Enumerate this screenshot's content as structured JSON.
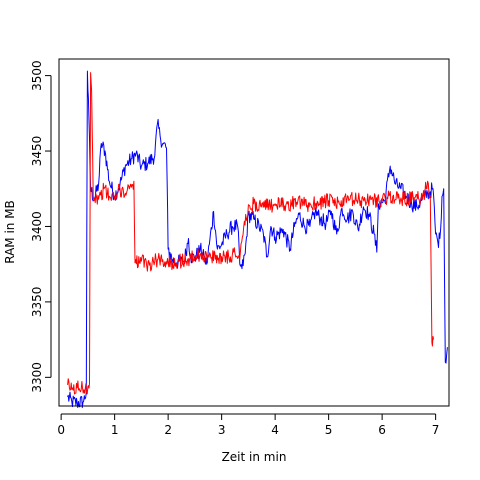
{
  "chart_data": {
    "type": "line",
    "title": "",
    "xlabel": "Zeit in min",
    "ylabel": "RAM in MB",
    "xlim": [
      -0.04,
      7.25
    ],
    "ylim": [
      3281,
      3511
    ],
    "x_ticks": [
      0,
      1,
      2,
      3,
      4,
      5,
      6,
      7
    ],
    "y_ticks": [
      3300,
      3350,
      3400,
      3450,
      3500
    ],
    "grid": false,
    "legend": "none",
    "noise_amplitude": 5,
    "series": [
      {
        "color": "#0000ff",
        "points": [
          [
            0.12,
            3287
          ],
          [
            0.2,
            3284
          ],
          [
            0.3,
            3283
          ],
          [
            0.42,
            3284
          ],
          [
            0.47,
            3290
          ],
          [
            0.49,
            3503
          ],
          [
            0.52,
            3470
          ],
          [
            0.55,
            3425
          ],
          [
            0.62,
            3418
          ],
          [
            0.7,
            3428
          ],
          [
            0.75,
            3455
          ],
          [
            0.82,
            3450
          ],
          [
            0.9,
            3430
          ],
          [
            1.0,
            3420
          ],
          [
            1.1,
            3428
          ],
          [
            1.2,
            3440
          ],
          [
            1.32,
            3445
          ],
          [
            1.4,
            3448
          ],
          [
            1.5,
            3440
          ],
          [
            1.62,
            3442
          ],
          [
            1.75,
            3447
          ],
          [
            1.8,
            3468
          ],
          [
            1.85,
            3460
          ],
          [
            1.9,
            3455
          ],
          [
            1.97,
            3452
          ],
          [
            2.0,
            3385
          ],
          [
            2.08,
            3378
          ],
          [
            2.15,
            3376
          ],
          [
            2.3,
            3377
          ],
          [
            2.38,
            3392
          ],
          [
            2.42,
            3380
          ],
          [
            2.5,
            3379
          ],
          [
            2.6,
            3385
          ],
          [
            2.72,
            3375
          ],
          [
            2.77,
            3388
          ],
          [
            2.85,
            3410
          ],
          [
            2.92,
            3385
          ],
          [
            3.0,
            3388
          ],
          [
            3.1,
            3395
          ],
          [
            3.2,
            3400
          ],
          [
            3.3,
            3400
          ],
          [
            3.34,
            3375
          ],
          [
            3.38,
            3372
          ],
          [
            3.44,
            3382
          ],
          [
            3.5,
            3408
          ],
          [
            3.6,
            3405
          ],
          [
            3.7,
            3400
          ],
          [
            3.78,
            3395
          ],
          [
            3.85,
            3380
          ],
          [
            3.92,
            3400
          ],
          [
            4.0,
            3393
          ],
          [
            4.15,
            3398
          ],
          [
            4.28,
            3385
          ],
          [
            4.36,
            3400
          ],
          [
            4.45,
            3408
          ],
          [
            4.55,
            3400
          ],
          [
            4.65,
            3400
          ],
          [
            4.75,
            3410
          ],
          [
            4.85,
            3405
          ],
          [
            4.95,
            3402
          ],
          [
            5.05,
            3410
          ],
          [
            5.15,
            3395
          ],
          [
            5.25,
            3412
          ],
          [
            5.35,
            3405
          ],
          [
            5.45,
            3410
          ],
          [
            5.55,
            3398
          ],
          [
            5.65,
            3413
          ],
          [
            5.75,
            3408
          ],
          [
            5.85,
            3395
          ],
          [
            5.9,
            3383
          ],
          [
            5.93,
            3415
          ],
          [
            6.05,
            3417
          ],
          [
            6.15,
            3440
          ],
          [
            6.25,
            3428
          ],
          [
            6.35,
            3425
          ],
          [
            6.45,
            3420
          ],
          [
            6.55,
            3415
          ],
          [
            6.65,
            3413
          ],
          [
            6.75,
            3418
          ],
          [
            6.85,
            3422
          ],
          [
            6.95,
            3425
          ],
          [
            7.0,
            3395
          ],
          [
            7.04,
            3390
          ],
          [
            7.08,
            3392
          ],
          [
            7.12,
            3420
          ],
          [
            7.15,
            3425
          ],
          [
            7.18,
            3310
          ],
          [
            7.22,
            3320
          ]
        ]
      },
      {
        "color": "#ff0000",
        "points": [
          [
            0.12,
            3295
          ],
          [
            0.2,
            3292
          ],
          [
            0.3,
            3293
          ],
          [
            0.4,
            3293
          ],
          [
            0.5,
            3294
          ],
          [
            0.53,
            3296
          ],
          [
            0.55,
            3502
          ],
          [
            0.57,
            3490
          ],
          [
            0.6,
            3420
          ],
          [
            0.7,
            3418
          ],
          [
            0.8,
            3425
          ],
          [
            0.9,
            3420
          ],
          [
            1.0,
            3418
          ],
          [
            1.1,
            3425
          ],
          [
            1.2,
            3422
          ],
          [
            1.3,
            3428
          ],
          [
            1.36,
            3430
          ],
          [
            1.38,
            3376
          ],
          [
            1.5,
            3377
          ],
          [
            1.6,
            3374
          ],
          [
            1.7,
            3376
          ],
          [
            1.8,
            3378
          ],
          [
            1.9,
            3378
          ],
          [
            2.0,
            3376
          ],
          [
            2.2,
            3377
          ],
          [
            2.4,
            3378
          ],
          [
            2.6,
            3382
          ],
          [
            2.8,
            3379
          ],
          [
            3.0,
            3380
          ],
          [
            3.2,
            3381
          ],
          [
            3.35,
            3383
          ],
          [
            3.45,
            3408
          ],
          [
            3.6,
            3415
          ],
          [
            3.8,
            3413
          ],
          [
            4.0,
            3415
          ],
          [
            4.2,
            3414
          ],
          [
            4.4,
            3416
          ],
          [
            4.6,
            3414
          ],
          [
            4.8,
            3416
          ],
          [
            5.0,
            3417
          ],
          [
            5.2,
            3415
          ],
          [
            5.4,
            3418
          ],
          [
            5.6,
            3417
          ],
          [
            5.8,
            3418
          ],
          [
            6.0,
            3417
          ],
          [
            6.2,
            3420
          ],
          [
            6.4,
            3418
          ],
          [
            6.6,
            3419
          ],
          [
            6.75,
            3418
          ],
          [
            6.85,
            3430
          ],
          [
            6.9,
            3420
          ],
          [
            6.93,
            3323
          ],
          [
            6.96,
            3325
          ]
        ]
      }
    ]
  }
}
